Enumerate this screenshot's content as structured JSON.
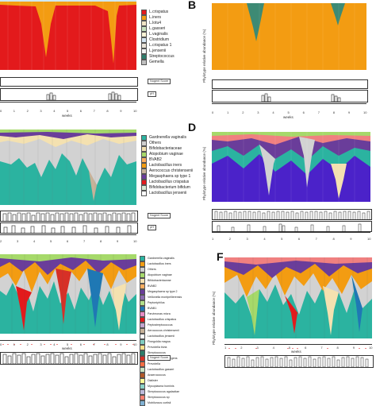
{
  "panels": [
    {
      "id": "A",
      "letter": "",
      "legend": [
        {
          "label": "L.crispatus",
          "color": "#e31a1c"
        },
        {
          "label": "L.iners",
          "color": "#f39c12"
        },
        {
          "label": "L.lotu4",
          "color": "#f1e5c6"
        },
        {
          "label": "L.gasseri",
          "color": "#c9e3c0"
        },
        {
          "label": "L.vaginalis",
          "color": "#fdf3d6"
        },
        {
          "label": "Clostridium",
          "color": "#d7e6f3"
        },
        {
          "label": "L.crispatus 1",
          "color": "#e9e3d8"
        },
        {
          "label": "L.jensenii",
          "color": "#f4f4f4"
        },
        {
          "label": "Streptococcus",
          "color": "#2e7d6b"
        },
        {
          "label": "Gemella",
          "color": "#bfbfbf"
        }
      ],
      "score_label": "Nugent Score",
      "ph_label": "pH",
      "weeks_label": "weeks",
      "ticks": [
        "0",
        "1",
        "2",
        "3",
        "4",
        "5",
        "6",
        "7",
        "8",
        "9",
        "10"
      ]
    },
    {
      "id": "B",
      "letter": "B",
      "ylabel": "Phylotype relative abundance (%)",
      "weeks_label": "weeks",
      "ticks": [
        "0",
        "1",
        "2",
        "3",
        "4",
        "5",
        "6",
        "7",
        "8",
        "9",
        "10"
      ]
    },
    {
      "id": "C",
      "letter": "",
      "legend": [
        {
          "label": "Gardnerella vaginalis",
          "color": "#2bb3a0"
        },
        {
          "label": "Others",
          "color": "#cfcfcf"
        },
        {
          "label": "Bifidobacteriaceae",
          "color": "#f4e1b0"
        },
        {
          "label": "Atopobium vaginae",
          "color": "#a6d96a"
        },
        {
          "label": "BVAB2",
          "color": "#fdae61"
        },
        {
          "label": "Lactobacillus iners",
          "color": "#f39c12"
        },
        {
          "label": "Aerococcus christensenii",
          "color": "#c7b299"
        },
        {
          "label": "Megasphaera sp type 1",
          "color": "#6a3d9a"
        },
        {
          "label": "Lactobacillus crispatus",
          "color": "#e31a1c"
        },
        {
          "label": "Bifidobacterium bifidum",
          "color": "#d9ead3"
        },
        {
          "label": "Lactobacillus jensenii",
          "color": "#ffffff"
        }
      ],
      "score_label": "Nugent Score",
      "ph_label": "pH",
      "ticks": [
        "2",
        "3",
        "4",
        "5",
        "6",
        "7",
        "8",
        "9",
        "10"
      ]
    },
    {
      "id": "D",
      "letter": "D",
      "ylabel": "Phylotype relative abundance (%)",
      "ticks": [
        "1",
        "2",
        "3",
        "4",
        "5",
        "6",
        "7",
        "8",
        "9",
        "10"
      ]
    },
    {
      "id": "E",
      "letter": "",
      "legend": [
        {
          "label": "Gardnerella vaginalis",
          "color": "#2bb3a0"
        },
        {
          "label": "Lactobacillus iners",
          "color": "#f39c12"
        },
        {
          "label": "Others",
          "color": "#cfcfcf"
        },
        {
          "label": "Atopobium vaginae",
          "color": "#a6d96a"
        },
        {
          "label": "Bifidobacteriaceae",
          "color": "#f4e1b0"
        },
        {
          "label": "BVAB2",
          "color": "#fdae61"
        },
        {
          "label": "Megasphaera sp type 2",
          "color": "#6a3d9a"
        },
        {
          "label": "Veillonella montpellierensis",
          "color": "#8c6bb1"
        },
        {
          "label": "Peptoniphilus",
          "color": "#b2df8a"
        },
        {
          "label": "BVAB1",
          "color": "#1f78b4"
        },
        {
          "label": "Parvimonas micra",
          "color": "#e78ac3"
        },
        {
          "label": "Lactobacillus crispatus",
          "color": "#e31a1c"
        },
        {
          "label": "Peptostreptococcus",
          "color": "#c2a5cf"
        },
        {
          "label": "Aerococcus christensenii",
          "color": "#c7b299"
        },
        {
          "label": "Lactobacillus jensenii",
          "color": "#ffffff"
        },
        {
          "label": "Finegoldia magna",
          "color": "#80cdc1"
        },
        {
          "label": "Prevotella bivia",
          "color": "#fee08b"
        },
        {
          "label": "Streptococcus",
          "color": "#2e7d6b"
        },
        {
          "label": "Sneathia sanguinegens",
          "color": "#d73027"
        },
        {
          "label": "Prevotella",
          "color": "#f46d43"
        },
        {
          "label": "Lactobacillus gasseri",
          "color": "#c9e3c0"
        },
        {
          "label": "Anaerococcus",
          "color": "#b15928"
        },
        {
          "label": "Dialister",
          "color": "#ffff99"
        },
        {
          "label": "Mycoplasma hominis",
          "color": "#8dd3c7"
        },
        {
          "label": "Streptococcus agalactiae",
          "color": "#bebada"
        },
        {
          "label": "Streptococcus sp",
          "color": "#fb8072"
        },
        {
          "label": "Mobiluncus curtisii",
          "color": "#80b1d3"
        }
      ],
      "weeks_label": "weeks",
      "score_label": "Nugent Score",
      "ticks": [
        "0",
        "1",
        "2",
        "3",
        "4",
        "5",
        "6",
        "7",
        "8",
        "9",
        "10"
      ]
    },
    {
      "id": "F",
      "letter": "F",
      "ylabel": "Phylotype relative abundance (%)",
      "weeks_label": "weeks",
      "ticks": [
        "1",
        "2",
        "3",
        "4",
        "5",
        "6",
        "7",
        "8",
        "9",
        "10"
      ]
    }
  ]
}
